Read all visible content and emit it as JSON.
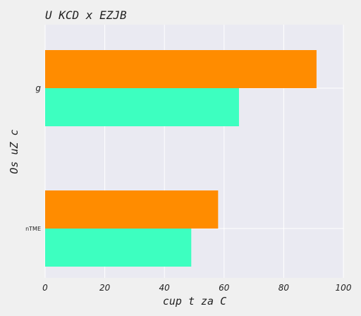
{
  "chart_data": {
    "type": "bar",
    "orientation": "horizontal",
    "title": "U  KCD x EZJB",
    "xlabel": "cup t za C",
    "ylabel": "Os uZ  c",
    "xlim": [
      0,
      100
    ],
    "xticks": [
      0,
      20,
      40,
      60,
      80,
      100
    ],
    "categories": [
      "g",
      "nTME"
    ],
    "grid": true,
    "series": [
      {
        "color": "#ff8c00",
        "values": [
          91,
          58
        ]
      },
      {
        "color": "#3dffc0",
        "values": [
          65,
          49
        ]
      }
    ]
  }
}
